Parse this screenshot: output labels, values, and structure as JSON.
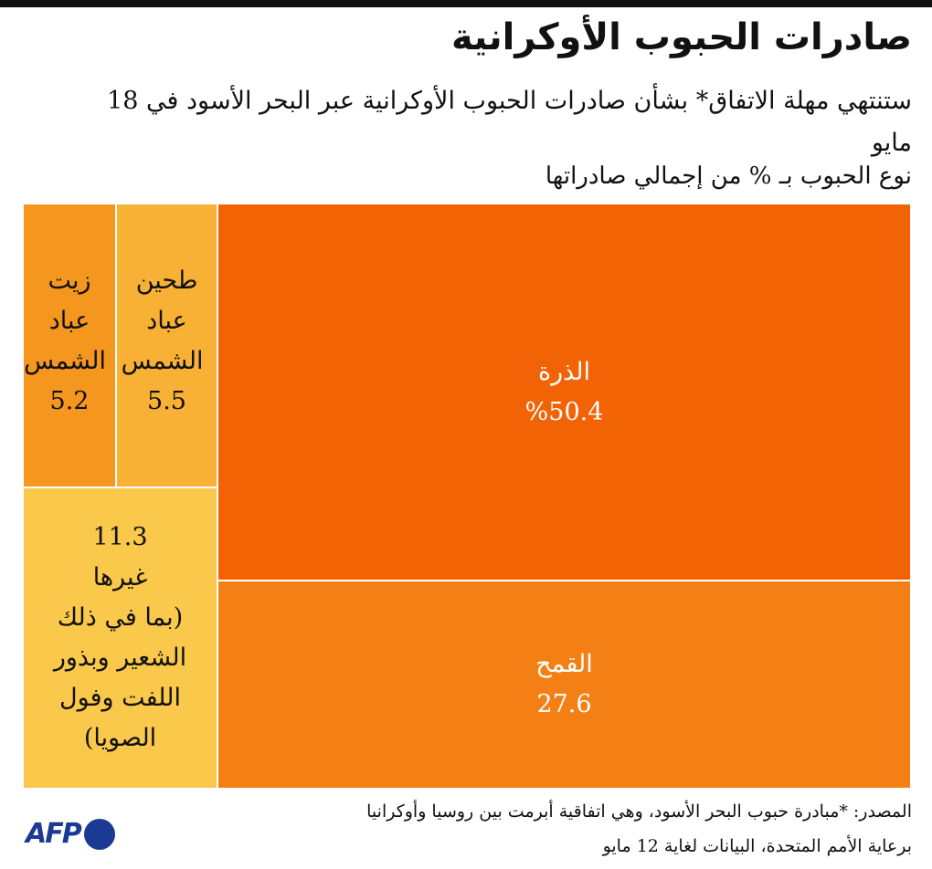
{
  "title": "صادرات الحبوب الأوكرانية",
  "subtitle": "ستنتهي مهلة الاتفاق* بشأن صادرات الحبوب الأوكرانية عبر البحر الأسود في 18 مايو",
  "footer": {
    "line1": "المصدر: *مبادرة حبوب البحر الأسود، وهي اتفاقية أبرمت بين روسيا وأوكرانيا",
    "line2": "برعاية الأمم المتحدة، البيانات لغاية 12 مايو",
    "logo": "AFP"
  },
  "chart_data": {
    "type": "treemap",
    "ylabel": "نوع الحبوب بـ % من إجمالي صادراتها",
    "items": [
      {
        "label": "الذرة",
        "value": 50.4,
        "value_text": "%50.4",
        "color": "#F26305"
      },
      {
        "label": "القمح",
        "value": 27.6,
        "value_text": "27.6",
        "color": "#F47F14"
      },
      {
        "label": "غيرها",
        "note": "(بما في ذلك الشعير وبذور اللفت وفول الصويا)",
        "value": 11.3,
        "value_text": "11.3",
        "color": "#FAC84A"
      },
      {
        "label": "طحين عباد الشمس",
        "value": 5.5,
        "value_text": "5.5",
        "color": "#F8B035"
      },
      {
        "label": "زيت عباد الشمس",
        "value": 5.2,
        "value_text": "5.2",
        "color": "#F5971F"
      }
    ]
  }
}
